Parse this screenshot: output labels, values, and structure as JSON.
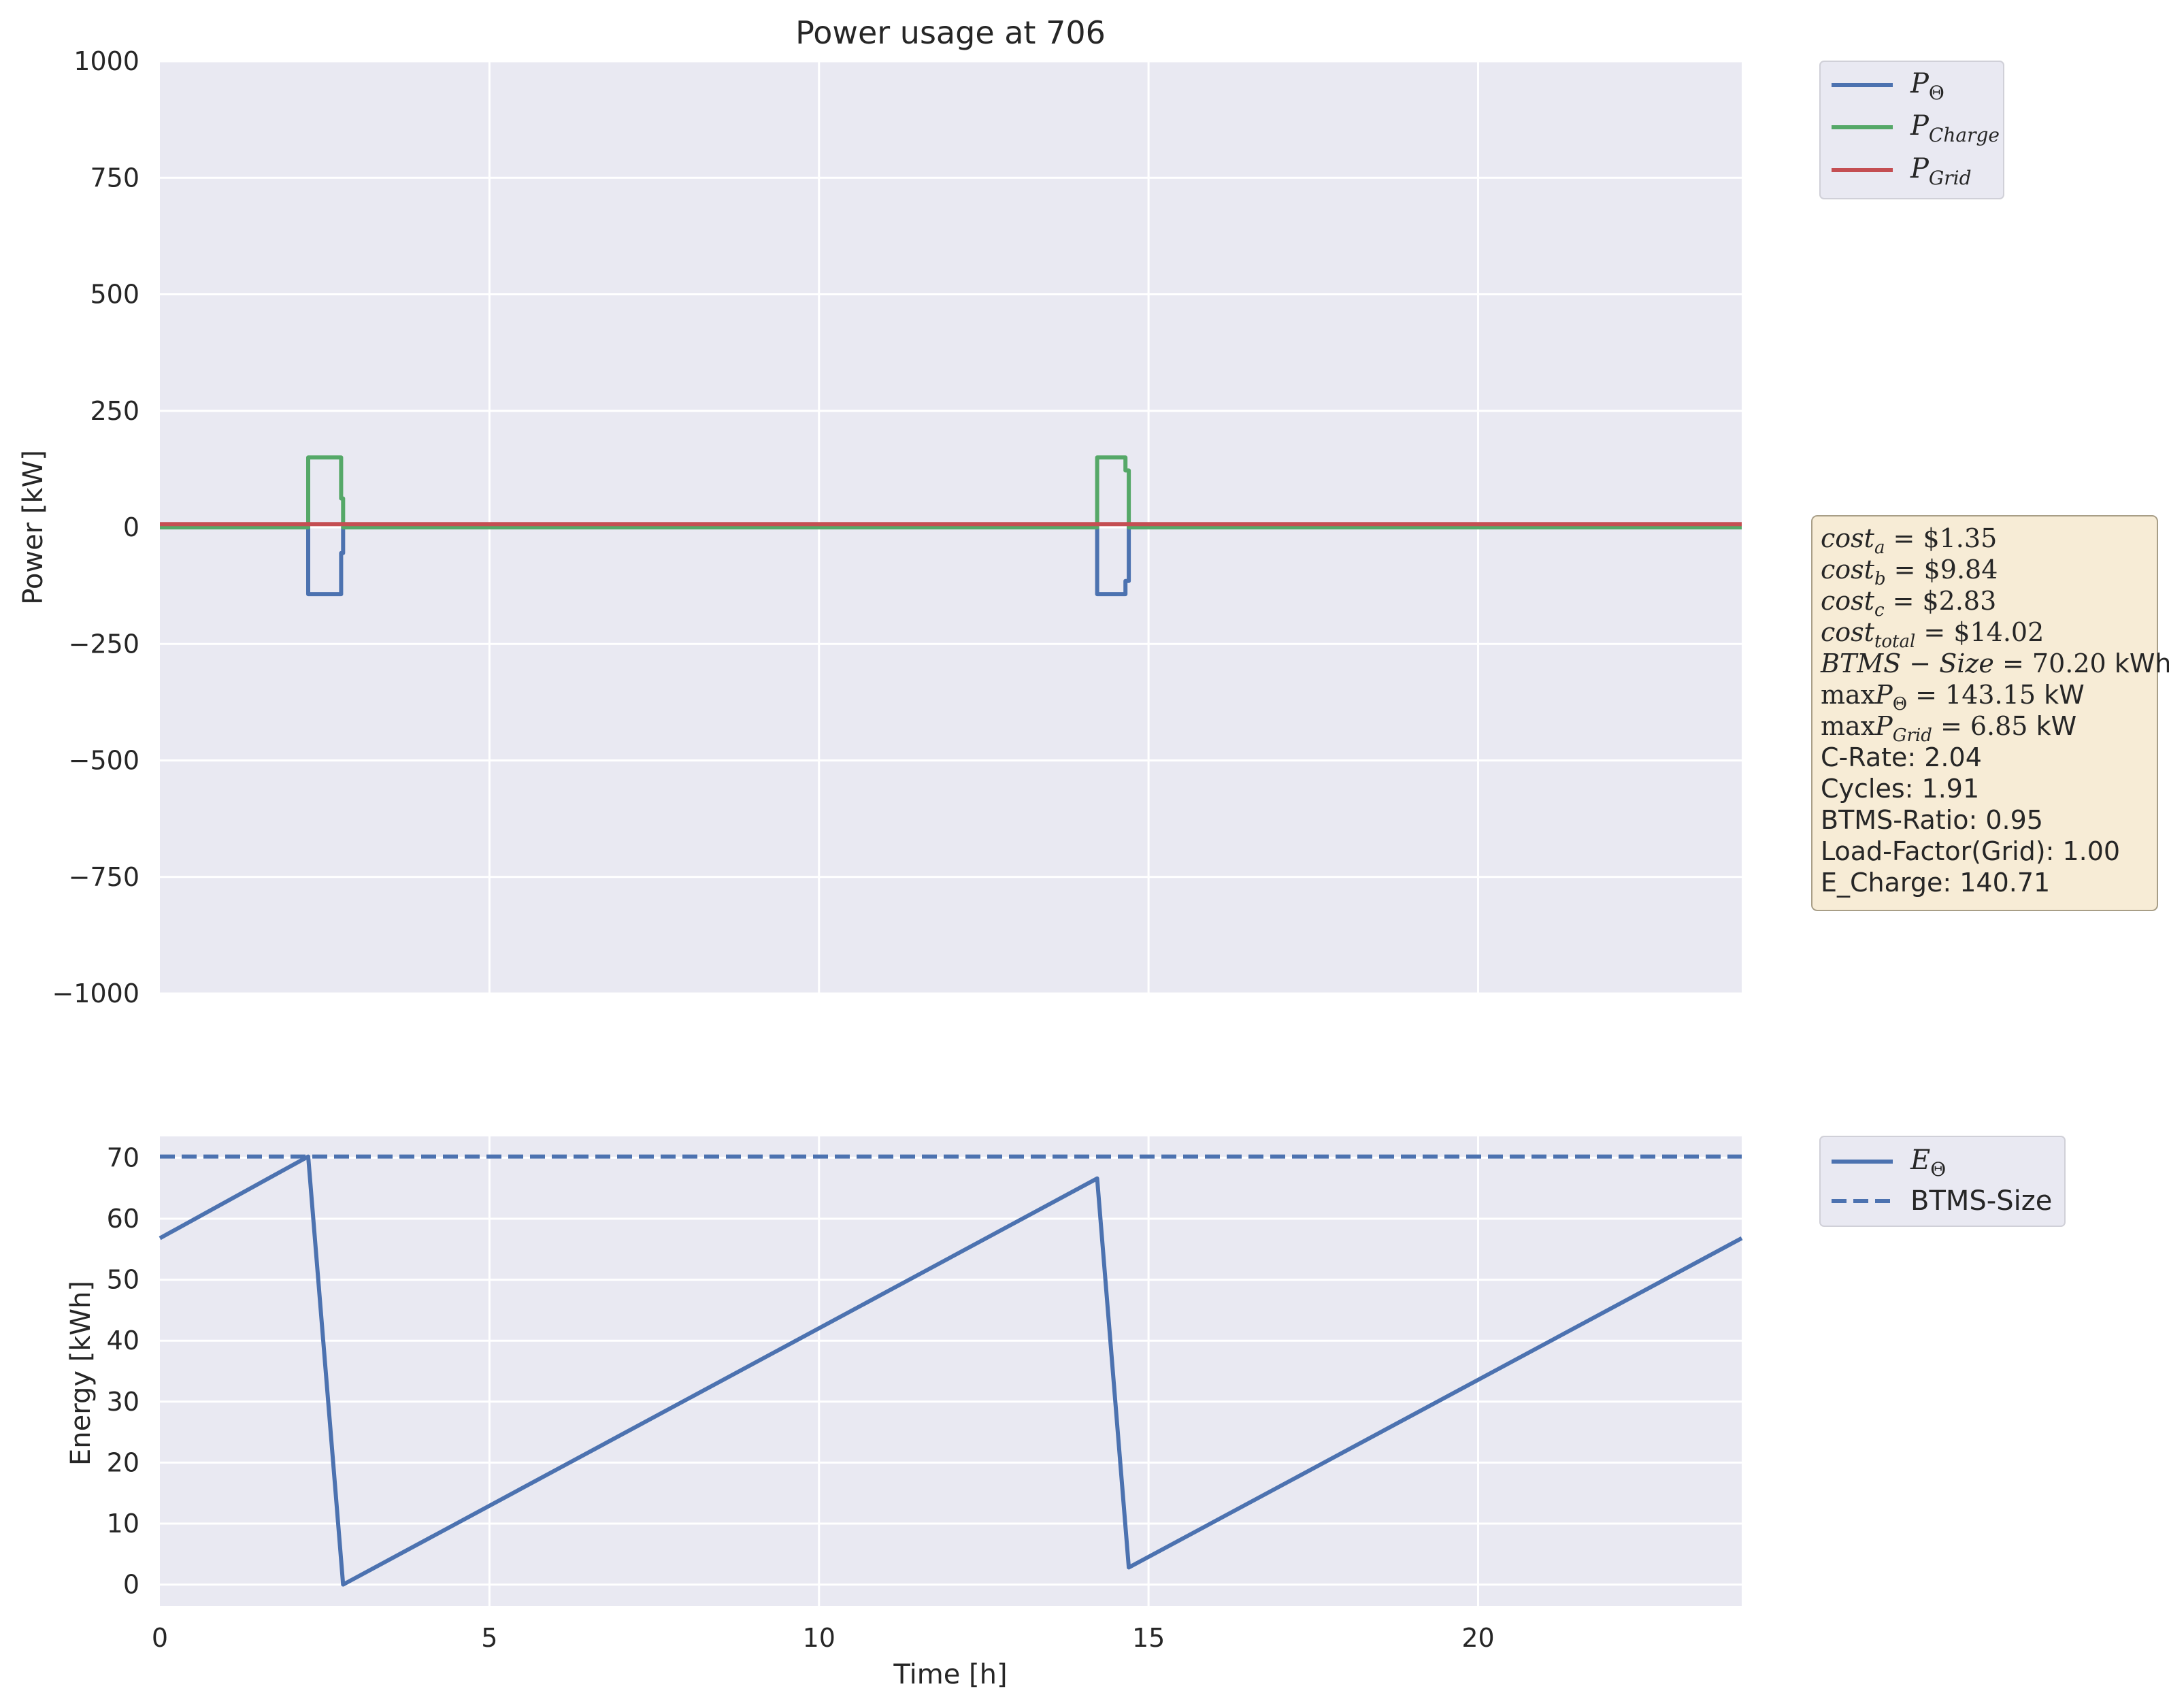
{
  "chart_data": [
    {
      "type": "line",
      "title": "Power usage at 706",
      "xlabel": "",
      "ylabel": "Power [kW]",
      "xlim": [
        0,
        24
      ],
      "ylim": [
        -1000,
        1000
      ],
      "xticks": [
        0,
        5,
        10,
        15,
        20
      ],
      "yticks": [
        -1000,
        -750,
        -500,
        -250,
        0,
        250,
        500,
        750,
        1000
      ],
      "ytick_labels": [
        "−1000",
        "−750",
        "−500",
        "−250",
        "0",
        "250",
        "500",
        "750",
        "1000"
      ],
      "show_xtick_labels": false,
      "grid": true,
      "legend_position": "outside-top-right",
      "series": [
        {
          "name": "P_Θ",
          "color": "#4c72b0",
          "x": [
            0,
            2.25,
            2.25,
            2.75,
            2.75,
            2.78,
            2.78,
            14.22,
            14.22,
            14.65,
            14.65,
            14.7,
            14.7,
            24
          ],
          "y": [
            0,
            0,
            -143.15,
            -143.15,
            -55,
            -55,
            0,
            0,
            -143.15,
            -143.15,
            -115,
            -115,
            0,
            0
          ]
        },
        {
          "name": "P_Charge",
          "color": "#55a868",
          "x": [
            0,
            2.25,
            2.25,
            2.75,
            2.75,
            2.78,
            2.78,
            14.22,
            14.22,
            14.65,
            14.65,
            14.7,
            14.7,
            24
          ],
          "y": [
            0,
            0,
            150,
            150,
            62,
            62,
            0,
            0,
            150,
            150,
            122,
            122,
            0,
            0
          ]
        },
        {
          "name": "P_Grid",
          "color": "#c44e52",
          "x": [
            0,
            24
          ],
          "y": [
            6.85,
            6.85
          ]
        }
      ]
    },
    {
      "type": "line",
      "title": "",
      "xlabel": "Time [h]",
      "ylabel": "Energy [kWh]",
      "xlim": [
        0,
        24
      ],
      "ylim": [
        -3.5,
        73.5
      ],
      "xticks": [
        0,
        5,
        10,
        15,
        20
      ],
      "yticks": [
        0,
        10,
        20,
        30,
        40,
        50,
        60,
        70
      ],
      "grid": true,
      "legend_position": "outside-top-right",
      "series": [
        {
          "name": "E_Θ",
          "color": "#4c72b0",
          "style": "solid",
          "x": [
            0,
            2.25,
            2.78,
            14.22,
            14.7,
            24
          ],
          "y": [
            56.8,
            70.2,
            0,
            66.6,
            2.8,
            56.8
          ]
        },
        {
          "name": "BTMS-Size",
          "color": "#4c72b0",
          "style": "dashed",
          "x": [
            0,
            24
          ],
          "y": [
            70.2,
            70.2
          ]
        }
      ]
    }
  ],
  "legend_top": {
    "items": [
      {
        "main": "P",
        "sub": "Θ",
        "color": "#4c72b0"
      },
      {
        "main": "P",
        "sub": "Charge",
        "color": "#55a868"
      },
      {
        "main": "P",
        "sub": "Grid",
        "color": "#c44e52"
      }
    ]
  },
  "legend_bottom": {
    "items": [
      {
        "main": "E",
        "sub": "Θ",
        "color": "#4c72b0",
        "dash": false
      },
      {
        "plain": "BTMS-Size",
        "color": "#4c72b0",
        "dash": true
      }
    ]
  },
  "info_box": {
    "cost_a": {
      "name": "cost",
      "sub": "a",
      "value": "$1.35"
    },
    "cost_b": {
      "name": "cost",
      "sub": "b",
      "value": "$9.84"
    },
    "cost_c": {
      "name": "cost",
      "sub": "c",
      "value": "$2.83"
    },
    "cost_total": {
      "name": "cost",
      "sub": "total",
      "value": "$14.02"
    },
    "btms_size": {
      "name": "BTMS",
      "name2": "Size",
      "value": "70.20",
      "unit": "kWh"
    },
    "max_p_theta": {
      "op": "max",
      "name": "P",
      "sub": "Θ",
      "value": "143.15",
      "unit": "kW"
    },
    "max_p_grid": {
      "op": "max",
      "name": "P",
      "sub": "Grid",
      "value": "6.85",
      "unit": "kW"
    },
    "c_rate": "C-Rate: 2.04",
    "cycles": "Cycles: 1.91",
    "btms_ratio": "BTMS-Ratio: 0.95",
    "load_factor": "Load-Factor(Grid): 1.00",
    "e_charge": "E_Charge: 140.71",
    "background": "#f7ecd6",
    "border": "#a89e87"
  },
  "style": {
    "axes_bg": "#e9e9f2",
    "grid_color": "#ffffff"
  }
}
